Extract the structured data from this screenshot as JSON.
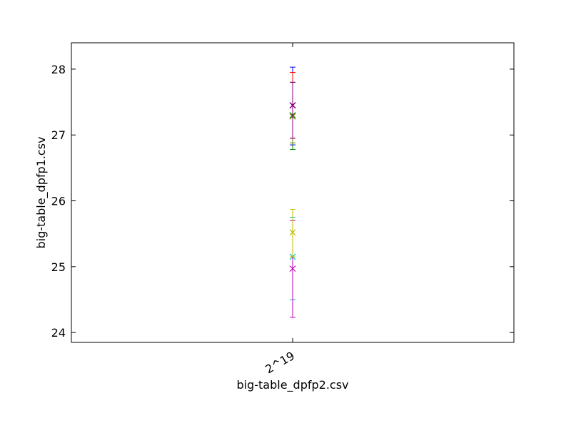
{
  "chart_data": {
    "type": "scatter",
    "title": "",
    "xlabel": "big-table_dpfp2.csv",
    "ylabel": "big-table_dpfp1.csv",
    "categories": [
      "2^19"
    ],
    "ylim": [
      23.85,
      28.4
    ],
    "yticks": [
      24,
      25,
      26,
      27,
      28
    ],
    "grid": false,
    "legend": "none",
    "marker": "x",
    "series": [
      {
        "color": "#0000ff",
        "values": [
          27.45
        ],
        "err_low": [
          26.85
        ],
        "err_high": [
          28.03
        ]
      },
      {
        "color": "#008000",
        "values": [
          27.3
        ],
        "err_low": [
          26.78
        ],
        "err_high": [
          27.8
        ]
      },
      {
        "color": "#ff0000",
        "values": [
          27.45
        ],
        "err_low": [
          26.95
        ],
        "err_high": [
          27.95
        ]
      },
      {
        "color": "#00bfbf",
        "values": [
          25.15
        ],
        "err_low": [
          24.5
        ],
        "err_high": [
          25.75
        ]
      },
      {
        "color": "#bf00bf",
        "values": [
          24.97
        ],
        "err_low": [
          24.23
        ],
        "err_high": [
          25.7
        ]
      },
      {
        "color": "#bfbf00",
        "values": [
          25.52
        ],
        "err_low": [
          25.15
        ],
        "err_high": [
          25.87
        ]
      },
      {
        "color": "#808000",
        "values": [
          27.28
        ],
        "err_low": [
          26.88
        ],
        "err_high": [
          27.8
        ]
      },
      {
        "color": "#800080",
        "values": [
          27.45
        ],
        "err_low": [
          26.95
        ],
        "err_high": [
          27.8
        ]
      }
    ]
  }
}
